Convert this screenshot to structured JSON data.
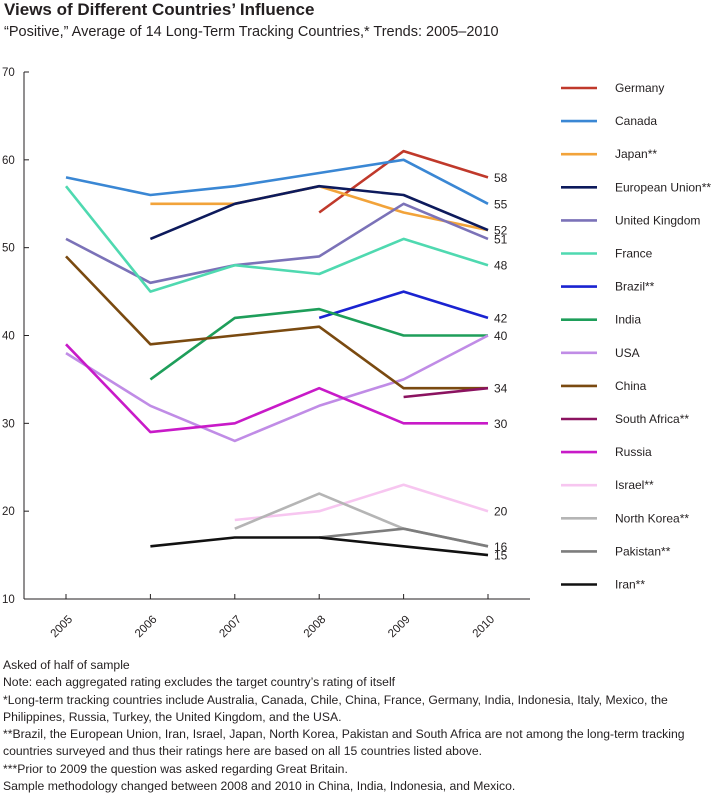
{
  "chart_data": {
    "type": "line",
    "title": "Views of Different Countries’ Influence",
    "subtitle": "“Positive,” Average of 14 Long-Term Tracking Countries,* Trends: 2005–2010",
    "xlabel": "",
    "ylabel": "",
    "x": [
      "2005",
      "2006",
      "2007",
      "2008",
      "2009",
      "2010"
    ],
    "ylim": [
      10,
      70
    ],
    "yticks": [
      10,
      20,
      30,
      40,
      50,
      60,
      70
    ],
    "grid": "none",
    "legend_position": "right",
    "series": [
      {
        "name": "Germany",
        "color": "#c0392b",
        "values": [
          null,
          null,
          null,
          54,
          61,
          58
        ],
        "end_label": "58"
      },
      {
        "name": "Canada",
        "color": "#3a87d4",
        "values": [
          58,
          56,
          57,
          58.5,
          60,
          55
        ],
        "end_label": "55"
      },
      {
        "name": "Japan**",
        "color": "#f2a33a",
        "values": [
          null,
          55,
          55,
          57,
          54,
          52
        ],
        "end_label": ""
      },
      {
        "name": "European Union**",
        "color": "#0d1a5c",
        "values": [
          null,
          51,
          55,
          57,
          56,
          52
        ],
        "end_label": "52"
      },
      {
        "name": "United Kingdom",
        "color": "#7b72b8",
        "values": [
          51,
          46,
          48,
          49,
          55,
          51
        ],
        "end_label": "51"
      },
      {
        "name": "France",
        "color": "#4fd9b0",
        "values": [
          57,
          45,
          48,
          47,
          51,
          48
        ],
        "end_label": "48"
      },
      {
        "name": "Brazil**",
        "color": "#1a23d1",
        "values": [
          null,
          null,
          null,
          42,
          45,
          42
        ],
        "end_label": "42"
      },
      {
        "name": "India",
        "color": "#1e9e5a",
        "values": [
          null,
          35,
          42,
          43,
          40,
          40
        ],
        "end_label": ""
      },
      {
        "name": "USA",
        "color": "#c08ce6",
        "values": [
          38,
          32,
          28,
          32,
          35,
          40
        ],
        "end_label": "40"
      },
      {
        "name": "China",
        "color": "#7a4a10",
        "values": [
          49,
          39,
          40,
          41,
          34,
          34
        ],
        "end_label": ""
      },
      {
        "name": "South Africa**",
        "color": "#8b1360",
        "values": [
          null,
          null,
          null,
          null,
          33,
          34
        ],
        "end_label": "34"
      },
      {
        "name": "Russia",
        "color": "#c81ac8",
        "values": [
          39,
          29,
          30,
          34,
          30,
          30
        ],
        "end_label": "30"
      },
      {
        "name": "Israel**",
        "color": "#f7c6f0",
        "values": [
          null,
          null,
          19,
          20,
          23,
          20
        ],
        "end_label": "20"
      },
      {
        "name": "North Korea**",
        "color": "#b5b5b5",
        "values": [
          null,
          null,
          18,
          22,
          18,
          16
        ],
        "end_label": ""
      },
      {
        "name": "Pakistan**",
        "color": "#7d7d7d",
        "values": [
          null,
          null,
          null,
          17,
          18,
          16
        ],
        "end_label": "16"
      },
      {
        "name": "Iran**",
        "color": "#111111",
        "values": [
          null,
          16,
          17,
          17,
          16,
          15
        ],
        "end_label": "15"
      }
    ]
  },
  "notes": [
    "Asked of half of sample",
    "Note: each aggregated rating excludes the target country’s rating of itself",
    "*Long-term tracking countries include Australia, Canada, Chile, China, France, Germany, India, Indonesia, Italy, Mexico, the Philippines, Russia, Turkey, the United Kingdom, and the USA.",
    "**Brazil, the European Union, Iran, Israel, Japan, North Korea, Pakistan and South Africa are not among the long-term tracking countries surveyed and thus their ratings here are based on all 15 countries listed above.",
    "***Prior to 2009 the question was asked regarding Great Britain.",
    "Sample methodology changed between 2008 and 2010 in China, India, Indonesia, and Mexico."
  ]
}
